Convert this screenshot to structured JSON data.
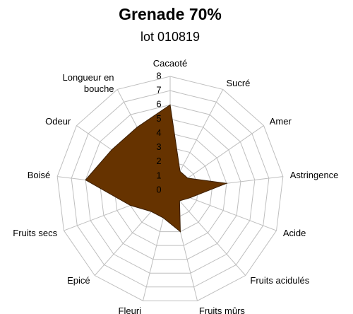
{
  "chart_data": {
    "type": "radar",
    "title": "Grenade 70%",
    "subtitle": "lot 010819",
    "categories": [
      "Cacaoté",
      "Sucré",
      "Amer",
      "Astringence",
      "Acide",
      "Fruits acidulés",
      "Fruits mûrs",
      "Fleuri",
      "Epicé",
      "Fruits secs",
      "Boisé",
      "Odeur",
      "Longueur en bouche"
    ],
    "values": [
      6,
      1.5,
      1.5,
      4,
      1.5,
      1,
      3,
      2,
      2,
      3,
      6,
      5,
      5
    ],
    "color": "#663300",
    "ylim": [
      0,
      8
    ],
    "yticks": [
      0,
      1,
      2,
      3,
      4,
      5,
      6,
      7,
      8
    ],
    "grid": true
  }
}
